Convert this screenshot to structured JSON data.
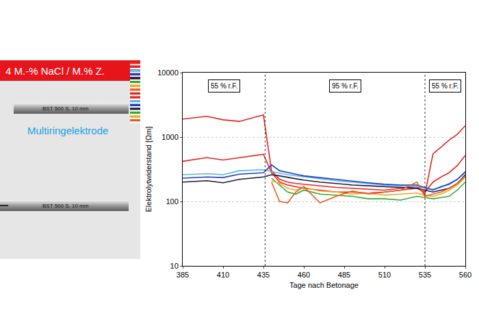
{
  "diagram": {
    "solution_label": "4 M.-% NaCl / M.% Z.",
    "rebar_labels": [
      "BST 500 S, 10 mm",
      "BST 500 S, 10 mm"
    ],
    "electrode_label": "Multiringelektrode"
  },
  "chart_data": {
    "type": "line",
    "xlabel": "Tage nach Betonage",
    "ylabel": "Elektrolytwiderstand [Ωm]",
    "log": "y",
    "grid": true,
    "xlim": [
      385,
      560
    ],
    "xticks": [
      385,
      410,
      435,
      460,
      485,
      510,
      535,
      560
    ],
    "ylim": [
      10,
      10000
    ],
    "yticks": [
      10,
      100,
      1000,
      10000
    ],
    "vlines": [
      436,
      535
    ],
    "regions": [
      "55 % r.F.",
      "95 % r.F.",
      "55 % r.F."
    ],
    "x": [
      385,
      400,
      410,
      420,
      435,
      440,
      445,
      450,
      455,
      460,
      470,
      480,
      490,
      500,
      510,
      520,
      530,
      535,
      540,
      545,
      550,
      555,
      560
    ],
    "series": [
      {
        "color": "#e8231c",
        "values": [
          1900,
          2100,
          1850,
          1750,
          2200,
          300,
          220,
          200,
          190,
          185,
          175,
          165,
          160,
          155,
          150,
          160,
          170,
          130,
          550,
          700,
          900,
          1100,
          1500
        ]
      },
      {
        "color": "#e8231c",
        "values": [
          420,
          480,
          440,
          480,
          540,
          280,
          200,
          180,
          170,
          160,
          150,
          140,
          140,
          135,
          140,
          150,
          160,
          140,
          200,
          240,
          280,
          360,
          520
        ]
      },
      {
        "color": "#5ab4e8",
        "values": [
          260,
          270,
          260,
          300,
          310,
          290,
          275,
          260,
          250,
          240,
          225,
          210,
          200,
          190,
          180,
          175,
          170,
          160,
          155,
          165,
          190,
          220,
          280
        ]
      },
      {
        "color": "#1f3fbf",
        "values": [
          230,
          240,
          235,
          265,
          280,
          370,
          300,
          280,
          265,
          250,
          235,
          220,
          205,
          195,
          185,
          180,
          180,
          165,
          150,
          170,
          185,
          220,
          290
        ]
      },
      {
        "color": "#1a1a3a",
        "values": [
          200,
          210,
          195,
          220,
          240,
          260,
          250,
          235,
          225,
          215,
          200,
          190,
          180,
          175,
          170,
          165,
          160,
          150,
          140,
          150,
          160,
          190,
          260
        ]
      },
      {
        "color": "#2eaa2e",
        "values": [
          null,
          null,
          null,
          null,
          null,
          230,
          180,
          140,
          130,
          150,
          130,
          125,
          120,
          110,
          110,
          105,
          120,
          115,
          110,
          115,
          120,
          150,
          200
        ]
      },
      {
        "color": "#f5a623",
        "values": [
          null,
          null,
          null,
          null,
          null,
          210,
          190,
          160,
          150,
          165,
          145,
          140,
          130,
          135,
          125,
          130,
          135,
          125,
          120,
          130,
          150,
          180,
          240
        ]
      },
      {
        "color": "#e85c1c",
        "values": [
          null,
          null,
          null,
          null,
          null,
          200,
          100,
          95,
          140,
          170,
          95,
          120,
          145,
          130,
          140,
          150,
          200,
          120,
          130,
          140,
          160,
          190,
          250
        ]
      }
    ]
  }
}
